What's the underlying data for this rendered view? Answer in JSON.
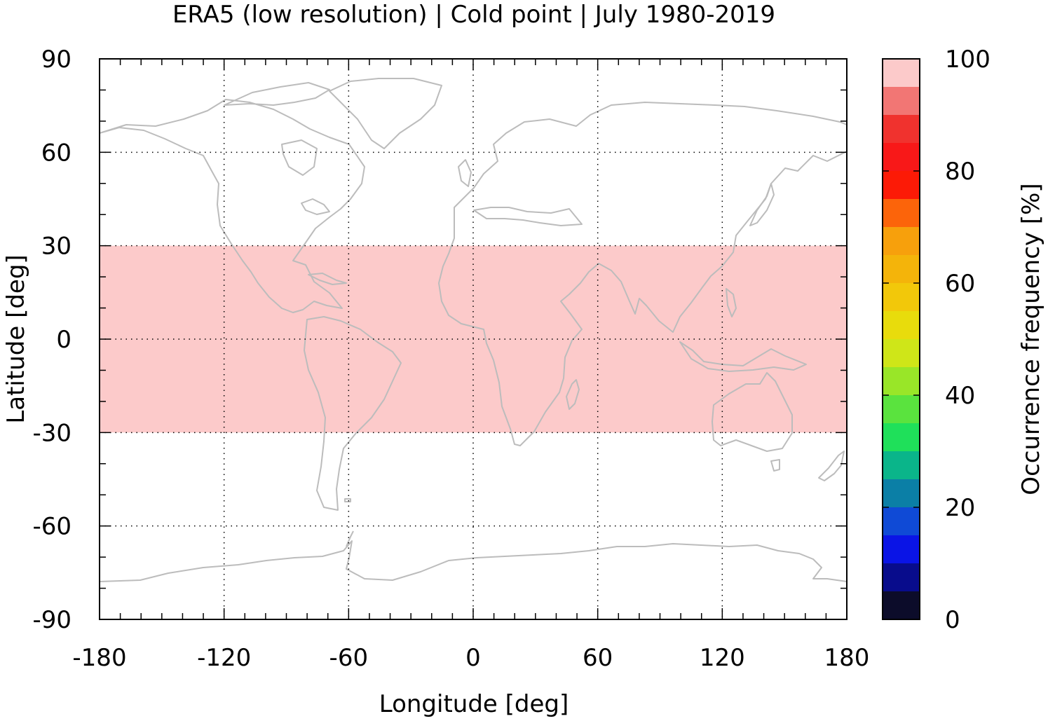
{
  "chart_data": {
    "type": "heatmap",
    "title": "ERA5 (low resolution) | Cold point | July 1980-2019",
    "xlabel": "Longitude [deg]",
    "ylabel": "Latitude [deg]",
    "xlim": [
      -180,
      180
    ],
    "ylim": [
      -90,
      90
    ],
    "xticks": [
      "-180",
      "-120",
      "-60",
      "0",
      "60",
      "120",
      "180"
    ],
    "xtick_values": [
      -180,
      -120,
      -60,
      0,
      60,
      120,
      180
    ],
    "yticks": [
      "90",
      "60",
      "30",
      "0",
      "-30",
      "-60",
      "-90"
    ],
    "ytick_values": [
      90,
      60,
      30,
      0,
      -30,
      -60,
      -90
    ],
    "grid": true,
    "basemap": "coastlines",
    "regions": [
      {
        "lon": [
          -180,
          180
        ],
        "lat": [
          -30,
          30
        ],
        "value": 100
      }
    ],
    "colorbar": {
      "label": "Occurrence frequency [%]",
      "range": [
        0,
        100
      ],
      "ticks": [
        "100",
        "80",
        "60",
        "40",
        "20",
        "0"
      ],
      "tick_values": [
        100,
        80,
        60,
        40,
        20,
        0
      ],
      "levels": [
        0,
        5,
        10,
        15,
        20,
        25,
        30,
        35,
        40,
        45,
        50,
        55,
        60,
        65,
        70,
        75,
        80,
        85,
        90,
        95,
        100
      ],
      "colors": [
        "#0c0c2a",
        "#080c8c",
        "#0a14e6",
        "#0f4ad6",
        "#0b7fa6",
        "#0ab58a",
        "#1fe05a",
        "#5ae33e",
        "#99e628",
        "#cfe618",
        "#e8dc0c",
        "#f2c80a",
        "#f4b40a",
        "#f7a00c",
        "#fc640a",
        "#fc1a06",
        "#f81818",
        "#f0322e",
        "#f27674",
        "#fccaca"
      ]
    },
    "colors": {
      "coastline": "#bcbcbc",
      "grid": "#000000"
    }
  }
}
